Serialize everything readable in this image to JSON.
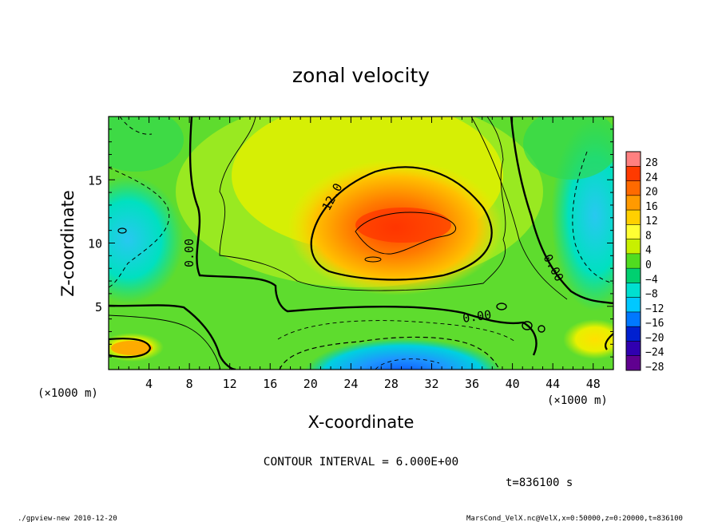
{
  "chart_data": {
    "type": "heatmap",
    "title": "zonal velocity",
    "xlabel": "X-coordinate",
    "ylabel": "Z-coordinate",
    "x_units_left": "(×1000 m)",
    "x_units_right": "(×1000 m)",
    "x_ticks": [
      "4",
      "8",
      "12",
      "16",
      "20",
      "24",
      "28",
      "32",
      "36",
      "40",
      "44",
      "48"
    ],
    "y_ticks": [
      "5",
      "10",
      "15"
    ],
    "xlim": [
      0,
      50
    ],
    "ylim": [
      0,
      20
    ],
    "colorbar_labels": [
      "28",
      "24",
      "20",
      "16",
      "12",
      "8",
      "4",
      "0",
      "−4",
      "−8",
      "−12",
      "−16",
      "−20",
      "−24",
      "−28"
    ],
    "colorbar_colors": [
      "#ff8080",
      "#ff3a00",
      "#ff6a00",
      "#ff9a00",
      "#ffd000",
      "#ffff33",
      "#c8f000",
      "#50dc20",
      "#00d070",
      "#00e0d0",
      "#00c8ff",
      "#0078ff",
      "#0020d0",
      "#3000b0",
      "#600090"
    ],
    "contour_labels": [
      "12.0",
      "0.00",
      "0.00",
      "0.00",
      "0.00"
    ],
    "contour_interval_text": "CONTOUR INTERVAL = 6.000E+00",
    "time_text": "t=836100 s",
    "footer_left": "./gpview-new  2010-12-20",
    "footer_right": "MarsCond_VelX.nc@VelX,x=0:50000,z=0:20000,t=836100"
  }
}
